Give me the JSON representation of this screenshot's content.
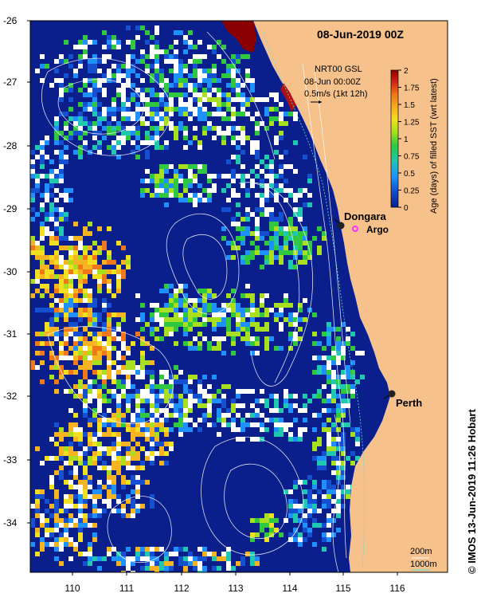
{
  "title": "08-Jun-2019 00Z",
  "info": {
    "product": "NRT00 GSL",
    "datetime": "08-Jun 00:00Z",
    "scale": "0.5m/s (1kt 12h)"
  },
  "colorbar": {
    "label": "Age (days) of filled SST (wrt latest)",
    "ticks": [
      "2",
      "1.75",
      "1.5",
      "1.25",
      "1",
      "0.75",
      "0.5",
      "0.25",
      "0"
    ],
    "colors": [
      "#8b0000",
      "#d2200f",
      "#f07818",
      "#f5b420",
      "#f0e020",
      "#a8e020",
      "#30c840",
      "#20c8b0",
      "#1e90ff",
      "#1450d0",
      "#0a1e8c"
    ]
  },
  "axes": {
    "lat_ticks": [
      "-26",
      "-27",
      "-28",
      "-29",
      "-30",
      "-31",
      "-32",
      "-33",
      "-34"
    ],
    "lon_ticks": [
      "110",
      "111",
      "112",
      "113",
      "114",
      "115",
      "116"
    ]
  },
  "places": {
    "dongara": "Dongara",
    "argo": "Argo",
    "perth": "Perth"
  },
  "bathymetry": {
    "contour_200": "200m",
    "contour_1000": "1000m"
  },
  "credit": "© IMOS 13-Jun-2019 11:26 Hobart",
  "colors": {
    "land": "#f7c18c",
    "ocean_deep": "#0a1e8c",
    "white_gap": "#ffffff",
    "argo_marker": "#ff33ff"
  }
}
